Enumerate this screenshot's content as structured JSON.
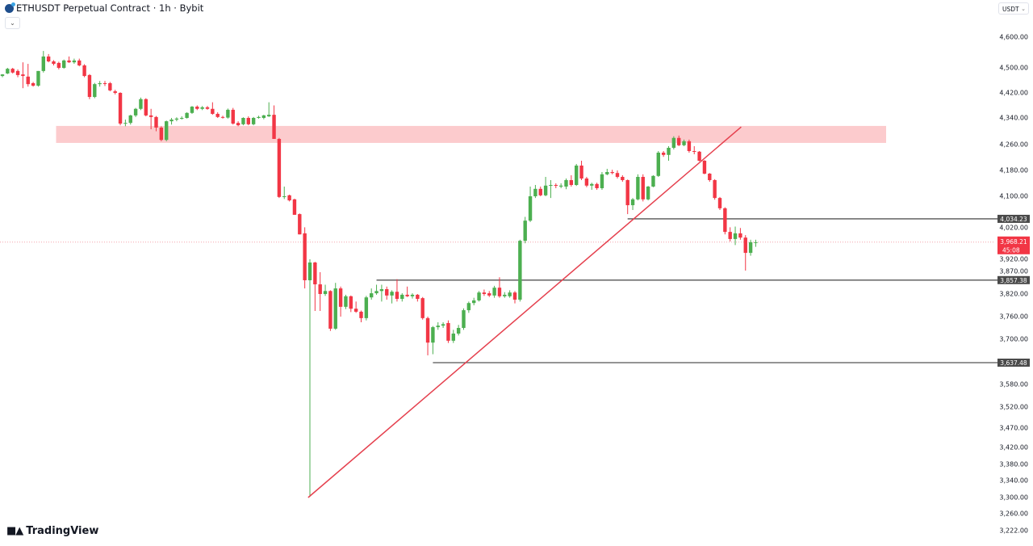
{
  "header": {
    "title": "ETHUSDT Perpetual Contract · 1h · Bybit",
    "currency": "USDT",
    "collapse_icon": "chevron-down-icon"
  },
  "branding": {
    "name": "TradingView"
  },
  "chart_data": {
    "type": "candlestick",
    "title": "ETHUSDT Perpetual Contract · 1h · Bybit",
    "interval": "1h",
    "y_ticks": [
      4600,
      4500,
      4420,
      4340,
      4260,
      4180,
      4100,
      4020,
      3920,
      3870,
      3820,
      3760,
      3700,
      3580,
      3520,
      3470,
      3420,
      3380,
      3340,
      3300,
      3260,
      3222
    ],
    "y_tick_labels": [
      "4,600.00",
      "4,500.00",
      "4,420.00",
      "4,340.00",
      "4,260.00",
      "4,180.00",
      "4,100.00",
      "4,020.00",
      "3,920.00",
      "3,870.00",
      "3,820.00",
      "3,760.00",
      "3,700.00",
      "3,580.00",
      "3,520.00",
      "3,470.00",
      "3,420.00",
      "3,380.00",
      "3,340.00",
      "3,300.00",
      "3,260.00",
      "3,222.00"
    ],
    "colors": {
      "up": "#4caf50",
      "down": "#f23645",
      "zone": "#fccbcd",
      "trendline": "#e5404e",
      "level": "#555555"
    },
    "candles_ohlc": [
      [
        4474,
        4480,
        4470,
        4479
      ],
      [
        4482,
        4500,
        4480,
        4497
      ],
      [
        4497,
        4500,
        4482,
        4485
      ],
      [
        4490,
        4495,
        4470,
        4477
      ],
      [
        4479,
        4518,
        4435,
        4474
      ],
      [
        4472,
        4513,
        4440,
        4448
      ],
      [
        4451,
        4455,
        4440,
        4443
      ],
      [
        4443,
        4490,
        4440,
        4490
      ],
      [
        4490,
        4555,
        4485,
        4537
      ],
      [
        4537,
        4545,
        4518,
        4521
      ],
      [
        4521,
        4525,
        4508,
        4513
      ],
      [
        4516,
        4520,
        4495,
        4500
      ],
      [
        4500,
        4527,
        4497,
        4524
      ],
      [
        4524,
        4537,
        4516,
        4518
      ],
      [
        4518,
        4530,
        4513,
        4524
      ],
      [
        4524,
        4530,
        4505,
        4508
      ],
      [
        4508,
        4512,
        4470,
        4474
      ],
      [
        4477,
        4480,
        4400,
        4407
      ],
      [
        4407,
        4452,
        4403,
        4448
      ],
      [
        4448,
        4458,
        4440,
        4451
      ],
      [
        4451,
        4458,
        4442,
        4450
      ],
      [
        4451,
        4455,
        4425,
        4428
      ],
      [
        4425,
        4430,
        4415,
        4420
      ],
      [
        4420,
        4422,
        4318,
        4323
      ],
      [
        4323,
        4335,
        4315,
        4325
      ],
      [
        4325,
        4350,
        4320,
        4348
      ],
      [
        4348,
        4372,
        4343,
        4369
      ],
      [
        4369,
        4405,
        4365,
        4400
      ],
      [
        4400,
        4403,
        4345,
        4348
      ],
      [
        4348,
        4369,
        4306,
        4343
      ],
      [
        4343,
        4346,
        4300,
        4311
      ],
      [
        4311,
        4315,
        4270,
        4274
      ],
      [
        4274,
        4332,
        4270,
        4330
      ],
      [
        4330,
        4340,
        4320,
        4335
      ],
      [
        4335,
        4342,
        4330,
        4338
      ],
      [
        4338,
        4345,
        4335,
        4340
      ],
      [
        4340,
        4358,
        4338,
        4356
      ],
      [
        4356,
        4378,
        4353,
        4376
      ],
      [
        4376,
        4380,
        4365,
        4369
      ],
      [
        4369,
        4378,
        4365,
        4374
      ],
      [
        4374,
        4378,
        4366,
        4369
      ],
      [
        4369,
        4390,
        4350,
        4353
      ],
      [
        4353,
        4358,
        4340,
        4343
      ],
      [
        4343,
        4347,
        4338,
        4341
      ],
      [
        4341,
        4370,
        4338,
        4366
      ],
      [
        4366,
        4372,
        4320,
        4323
      ],
      [
        4325,
        4330,
        4315,
        4318
      ],
      [
        4321,
        4342,
        4318,
        4340
      ],
      [
        4340,
        4345,
        4318,
        4321
      ],
      [
        4321,
        4343,
        4318,
        4340
      ],
      [
        4340,
        4347,
        4338,
        4343
      ],
      [
        4340,
        4350,
        4336,
        4348
      ],
      [
        4345,
        4390,
        4343,
        4350
      ],
      [
        4350,
        4380,
        4277,
        4277
      ],
      [
        4277,
        4280,
        4095,
        4098
      ],
      [
        4098,
        4130,
        4092,
        4100
      ],
      [
        4103,
        4105,
        4085,
        4088
      ],
      [
        4091,
        4093,
        4046,
        4046
      ],
      [
        4048,
        4050,
        3990,
        3990
      ],
      [
        3993,
        4010,
        3835,
        3857
      ],
      [
        3857,
        3920,
        3302,
        3910
      ],
      [
        3910,
        3912,
        3775,
        3846
      ],
      [
        3846,
        3880,
        3775,
        3820
      ],
      [
        3820,
        3845,
        3815,
        3828
      ],
      [
        3828,
        3830,
        3722,
        3728
      ],
      [
        3728,
        3850,
        3725,
        3835
      ],
      [
        3835,
        3840,
        3760,
        3786
      ],
      [
        3786,
        3818,
        3780,
        3814
      ],
      [
        3814,
        3816,
        3772,
        3781
      ],
      [
        3781,
        3800,
        3770,
        3773
      ],
      [
        3773,
        3776,
        3745,
        3756
      ],
      [
        3756,
        3815,
        3750,
        3811
      ],
      [
        3811,
        3835,
        3805,
        3822
      ],
      [
        3822,
        3845,
        3818,
        3828
      ],
      [
        3828,
        3845,
        3800,
        3833
      ],
      [
        3833,
        3840,
        3805,
        3816
      ],
      [
        3816,
        3830,
        3795,
        3826
      ],
      [
        3826,
        3860,
        3800,
        3807
      ],
      [
        3807,
        3822,
        3800,
        3818
      ],
      [
        3818,
        3840,
        3812,
        3814
      ],
      [
        3814,
        3822,
        3808,
        3818
      ],
      [
        3818,
        3820,
        3800,
        3807
      ],
      [
        3809,
        3812,
        3752,
        3756
      ],
      [
        3756,
        3760,
        3657,
        3691
      ],
      [
        3691,
        3735,
        3660,
        3732
      ],
      [
        3732,
        3745,
        3725,
        3736
      ],
      [
        3736,
        3745,
        3730,
        3740
      ],
      [
        3743,
        3750,
        3690,
        3696
      ],
      [
        3696,
        3725,
        3690,
        3715
      ],
      [
        3715,
        3738,
        3710,
        3730
      ],
      [
        3730,
        3782,
        3725,
        3777
      ],
      [
        3777,
        3800,
        3770,
        3796
      ],
      [
        3796,
        3810,
        3790,
        3803
      ],
      [
        3803,
        3828,
        3800,
        3824
      ],
      [
        3824,
        3832,
        3815,
        3820
      ],
      [
        3822,
        3828,
        3812,
        3816
      ],
      [
        3816,
        3842,
        3810,
        3837
      ],
      [
        3837,
        3865,
        3810,
        3814
      ],
      [
        3814,
        3825,
        3810,
        3818
      ],
      [
        3814,
        3830,
        3810,
        3824
      ],
      [
        3824,
        3828,
        3795,
        3805
      ],
      [
        3805,
        3975,
        3800,
        3972
      ],
      [
        3972,
        4040,
        3965,
        4029
      ],
      [
        4029,
        4130,
        4025,
        4100
      ],
      [
        4100,
        4135,
        4095,
        4123
      ],
      [
        4123,
        4130,
        4100,
        4103
      ],
      [
        4103,
        4160,
        4100,
        4133
      ],
      [
        4133,
        4150,
        4095,
        4135
      ],
      [
        4135,
        4140,
        4125,
        4133
      ],
      [
        4130,
        4140,
        4125,
        4133
      ],
      [
        4130,
        4155,
        4122,
        4150
      ],
      [
        4150,
        4165,
        4130,
        4135
      ],
      [
        4135,
        4200,
        4132,
        4195
      ],
      [
        4195,
        4210,
        4150,
        4155
      ],
      [
        4155,
        4160,
        4128,
        4133
      ],
      [
        4133,
        4142,
        4120,
        4138
      ],
      [
        4138,
        4142,
        4120,
        4125
      ],
      [
        4125,
        4175,
        4120,
        4168
      ],
      [
        4168,
        4185,
        4165,
        4175
      ],
      [
        4175,
        4182,
        4168,
        4172
      ],
      [
        4172,
        4180,
        4155,
        4160
      ],
      [
        4160,
        4165,
        4145,
        4150
      ],
      [
        4150,
        4152,
        4048,
        4074
      ],
      [
        4074,
        4095,
        4060,
        4091
      ],
      [
        4091,
        4168,
        4088,
        4160
      ],
      [
        4160,
        4168,
        4085,
        4091
      ],
      [
        4091,
        4132,
        4088,
        4130
      ],
      [
        4130,
        4165,
        4128,
        4163
      ],
      [
        4163,
        4240,
        4160,
        4235
      ],
      [
        4235,
        4240,
        4222,
        4228
      ],
      [
        4228,
        4255,
        4210,
        4250
      ],
      [
        4250,
        4285,
        4245,
        4280
      ],
      [
        4280,
        4287,
        4255,
        4258
      ],
      [
        4258,
        4275,
        4255,
        4270
      ],
      [
        4270,
        4275,
        4235,
        4240
      ],
      [
        4240,
        4255,
        4230,
        4238
      ],
      [
        4238,
        4240,
        4208,
        4210
      ],
      [
        4210,
        4212,
        4168,
        4170
      ],
      [
        4170,
        4172,
        4145,
        4150
      ],
      [
        4150,
        4153,
        4090,
        4095
      ],
      [
        4095,
        4098,
        4060,
        4065
      ],
      [
        4065,
        4068,
        3990,
        3997
      ],
      [
        3997,
        4010,
        3970,
        3977
      ],
      [
        3977,
        4012,
        3960,
        3993
      ],
      [
        3993,
        4008,
        3975,
        3981
      ],
      [
        3981,
        3988,
        3885,
        3938
      ],
      [
        3938,
        3975,
        3930,
        3968
      ],
      [
        3968,
        3975,
        3955,
        3968
      ]
    ],
    "annotations": {
      "supply_zone": {
        "price_top": 4316,
        "price_bottom": 4265,
        "start_candle": 10
      },
      "trendline": {
        "from": {
          "candle": 59.5,
          "price": 3300
        },
        "to": {
          "candle": 144,
          "price": 4313
        }
      },
      "levels": [
        {
          "price": 4034.23,
          "label": "4,034.23",
          "start_candle": 122
        },
        {
          "price": 3857.38,
          "label": "3,857.38",
          "start_candle": 73
        },
        {
          "price": 3637.48,
          "label": "3,637.48",
          "start_candle": 84
        }
      ],
      "last_price": {
        "price": 3968.21,
        "label": "3,968.21",
        "countdown": "45:08"
      }
    }
  }
}
